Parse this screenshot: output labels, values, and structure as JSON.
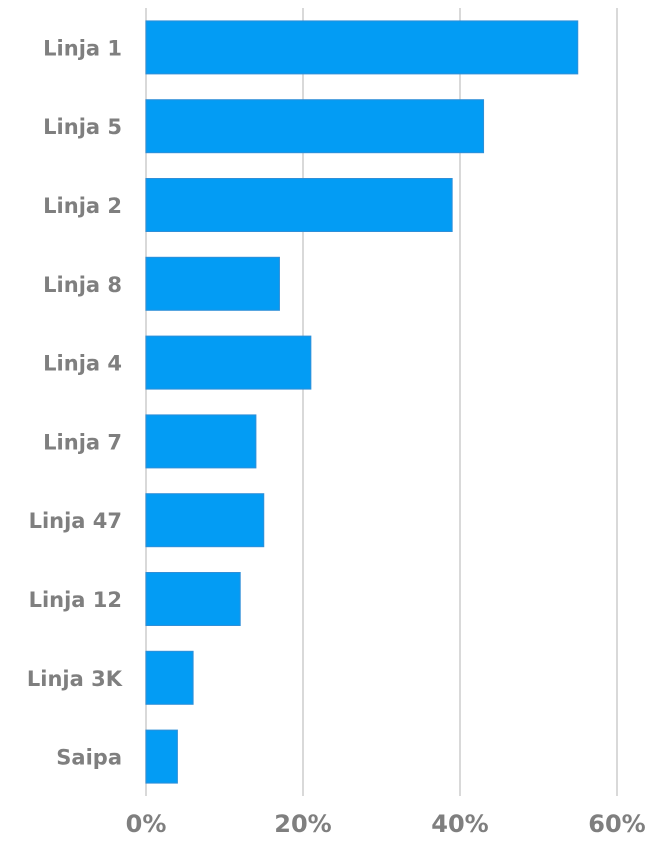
{
  "chart_data": {
    "type": "bar",
    "orientation": "horizontal",
    "title": "",
    "xlabel": "",
    "ylabel": "",
    "categories": [
      "Linja 1",
      "Linja 5",
      "Linja 2",
      "Linja 8",
      "Linja 4",
      "Linja 7",
      "Linja 47",
      "Linja 12",
      "Linja 3K",
      "Saipa"
    ],
    "values": [
      0.55,
      0.43,
      0.39,
      0.17,
      0.21,
      0.14,
      0.15,
      0.12,
      0.06,
      0.04
    ],
    "xlim": [
      0,
      0.6
    ],
    "x_ticks": [
      {
        "value": 0,
        "label": "0%"
      },
      {
        "value": 0.2,
        "label": "20%"
      },
      {
        "value": 0.4,
        "label": "40%"
      },
      {
        "value": 0.6,
        "label": "60%"
      }
    ],
    "grid": true,
    "legend": "none",
    "colors": {
      "bar": "#039cf4",
      "bar_edge": "#2f8fd8",
      "gridline": "#d9d9d9",
      "text": "#7f7f7f"
    }
  }
}
